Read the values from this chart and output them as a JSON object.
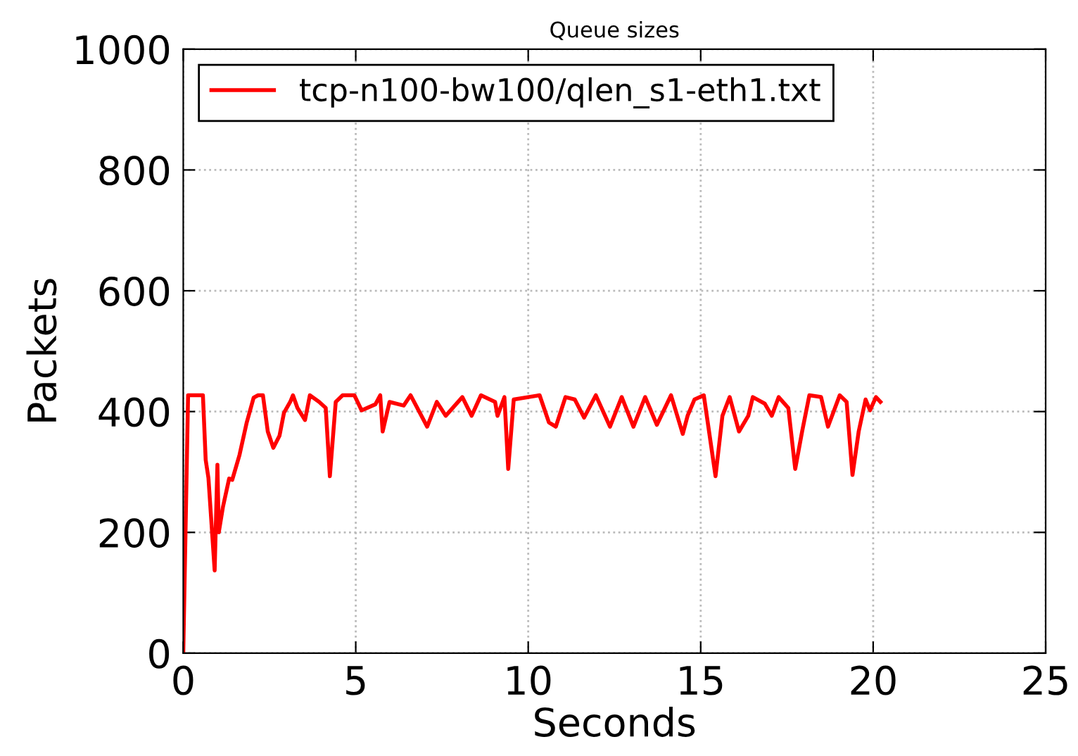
{
  "chart_data": {
    "type": "line",
    "title": "Queue sizes",
    "xlabel": "Seconds",
    "ylabel": "Packets",
    "xlim": [
      0,
      25
    ],
    "ylim": [
      0,
      1000
    ],
    "xticks": [
      0,
      5,
      10,
      15,
      20,
      25
    ],
    "yticks": [
      0,
      200,
      400,
      600,
      800,
      1000
    ],
    "grid": true,
    "legend": "top left",
    "marker": "none",
    "line_style": "solid",
    "series": [
      {
        "name": "tcp-n100-bw100/qlen_s1-eth1.txt",
        "color": "#ff0000",
        "x": [
          0,
          0.14,
          0.57,
          0.65,
          0.73,
          0.91,
          0.99,
          1.03,
          1.15,
          1.33,
          1.42,
          1.63,
          1.84,
          2.04,
          2.17,
          2.31,
          2.45,
          2.61,
          2.79,
          2.92,
          3.1,
          3.18,
          3.31,
          3.53,
          3.67,
          3.94,
          4.13,
          4.25,
          4.42,
          4.62,
          4.96,
          5.17,
          5.57,
          5.71,
          5.78,
          5.98,
          6.39,
          6.59,
          7.07,
          7.35,
          7.61,
          8.09,
          8.36,
          8.63,
          9.04,
          9.11,
          9.31,
          9.42,
          9.58,
          10.33,
          10.6,
          10.8,
          11.08,
          11.35,
          11.62,
          11.96,
          12.37,
          12.71,
          13.05,
          13.39,
          13.73,
          14.14,
          14.48,
          14.62,
          14.82,
          15.09,
          15.43,
          15.63,
          15.84,
          16.11,
          16.38,
          16.51,
          16.86,
          17.06,
          17.26,
          17.54,
          17.74,
          17.94,
          18.15,
          18.49,
          18.69,
          19.03,
          19.23,
          19.4,
          19.58,
          19.78,
          19.91,
          20.08,
          20.21
        ],
        "values": [
          0,
          427,
          427,
          320,
          290,
          137,
          312,
          200,
          242,
          289,
          287,
          328,
          382,
          423,
          427,
          427,
          367,
          340,
          360,
          398,
          416,
          427,
          406,
          386,
          427,
          416,
          406,
          293,
          416,
          427,
          427,
          402,
          412,
          427,
          367,
          416,
          410,
          427,
          375,
          416,
          393,
          424,
          393,
          427,
          416,
          393,
          424,
          305,
          420,
          427,
          382,
          375,
          424,
          420,
          390,
          427,
          375,
          424,
          375,
          424,
          378,
          427,
          363,
          393,
          420,
          427,
          293,
          393,
          424,
          367,
          393,
          424,
          413,
          393,
          424,
          406,
          305,
          367,
          427,
          424,
          375,
          427,
          416,
          295,
          367,
          420,
          402,
          424,
          416
        ]
      }
    ]
  }
}
